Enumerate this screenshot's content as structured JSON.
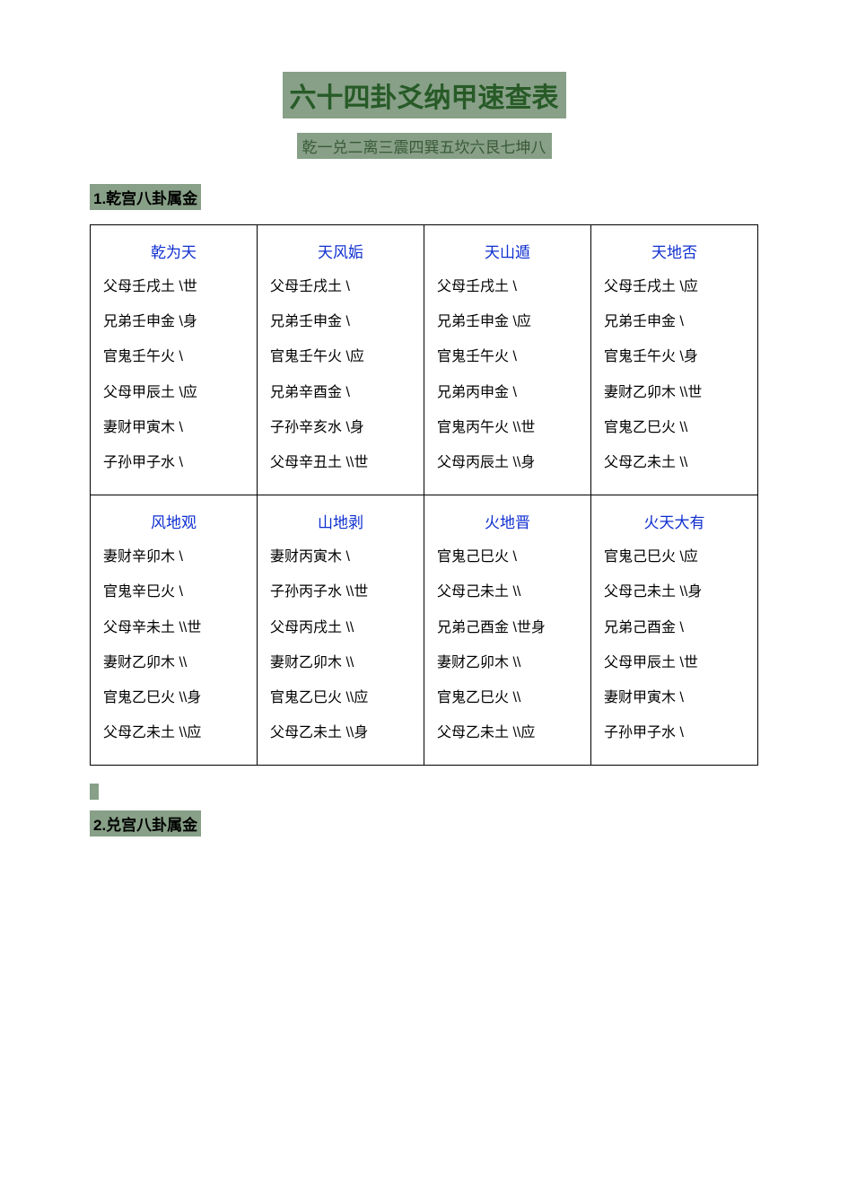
{
  "colors": {
    "highlight_bg": "#87a087",
    "title_text": "#275a27",
    "link_text": "#1030d0",
    "body_text": "#000000",
    "page_bg": "#ffffff",
    "border": "#000000"
  },
  "fonts": {
    "title_size": 30,
    "subtitle_size": 17,
    "heading_size": 17,
    "body_size": 16
  },
  "title": "六十四卦爻纳甲速查表",
  "subtitle": "乾一兑二离三震四巽五坎六艮七坤八",
  "sections": [
    {
      "heading": "1.乾宫八卦属金",
      "blocks": [
        {
          "columns": [
            {
              "name": "乾为天",
              "lines": [
                "父母壬戌土  \\世",
                "兄弟壬申金  \\身",
                "官鬼壬午火  \\",
                "父母甲辰土  \\应",
                "妻财甲寅木  \\",
                "子孙甲子水  \\"
              ]
            },
            {
              "name": "天风姤",
              "lines": [
                "父母壬戌土  \\",
                "兄弟壬申金  \\",
                "官鬼壬午火  \\应",
                "兄弟辛酉金  \\",
                "子孙辛亥水  \\身",
                "父母辛丑土  \\\\世"
              ]
            },
            {
              "name": "天山遁",
              "lines": [
                "父母壬戌土  \\",
                "兄弟壬申金  \\应",
                "官鬼壬午火  \\",
                "兄弟丙申金  \\",
                "官鬼丙午火  \\\\世",
                "父母丙辰土  \\\\身"
              ]
            },
            {
              "name": "天地否",
              "lines": [
                "父母壬戌土  \\应",
                "兄弟壬申金  \\",
                "官鬼壬午火  \\身",
                "妻财乙卯木  \\\\世",
                "官鬼乙巳火  \\\\",
                "父母乙未土  \\\\"
              ]
            }
          ]
        },
        {
          "columns": [
            {
              "name": "风地观",
              "lines": [
                "妻财辛卯木  \\",
                "官鬼辛巳火  \\",
                "父母辛未土  \\\\世",
                "妻财乙卯木  \\\\",
                "官鬼乙巳火  \\\\身",
                "父母乙未土  \\\\应"
              ]
            },
            {
              "name": "山地剥",
              "lines": [
                "妻财丙寅木  \\",
                "子孙丙子水  \\\\世",
                "父母丙戌土  \\\\",
                "妻财乙卯木  \\\\",
                "官鬼乙巳火  \\\\应",
                "父母乙未土  \\\\身"
              ]
            },
            {
              "name": "火地晋",
              "lines": [
                "官鬼己巳火  \\",
                "父母己未土  \\\\",
                "兄弟己酉金  \\世身",
                "妻财乙卯木  \\\\",
                "官鬼乙巳火  \\\\",
                "父母乙未土  \\\\应"
              ]
            },
            {
              "name": "火天大有",
              "lines": [
                "官鬼己巳火  \\应",
                "父母己未土  \\\\身",
                "兄弟己酉金  \\",
                "父母甲辰土  \\世",
                "妻财甲寅木  \\",
                "子孙甲子水  \\"
              ]
            }
          ]
        }
      ]
    },
    {
      "heading": "2.兑宫八卦属金"
    }
  ]
}
